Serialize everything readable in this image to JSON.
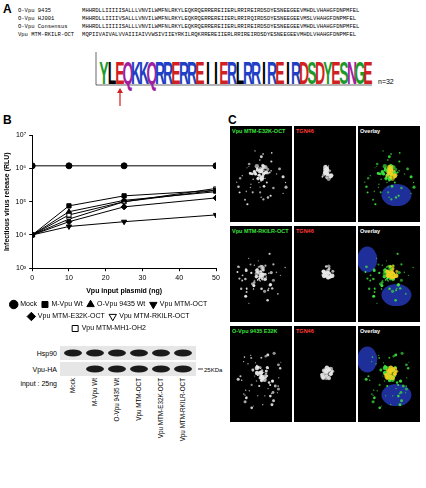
{
  "panel_A": {
    "letter": "A",
    "alignment": [
      {
        "name": "O-Vpu 9435",
        "sequence": "MHHRDLLIIIIISALLLVNVILWMFNLRKYLEQKRQERREREIIERLRRIREIRDSDYESNEEGEEVMHDLVHAHGFDNPMFEL"
      },
      {
        "name": "O-Vpu HJ001",
        "sequence": "MHHRDLLIIIIVSALLLVNVILWMFNLRKYLEQKRQERREREIIERLRRIRQIRDSDYESNEEGEEVMSLVHAHGFDNPMFEL"
      },
      {
        "name": "O-Vpu Consensus",
        "sequence": "MHHRDLLIIIIISALLLVNVILWMFNLRKYLEQKRQERREREIIERLRRIREIRDSDYESNEEGEEVMHDLVHAHGFDNPMFEL"
      },
      {
        "name": "Vpu MTM-RKILR-OCT",
        "sequence": "MQPIIVAIVALVVAIIIAIVVWSIVIIEYRKILRQKRREREIIERLRRIREIRDSDYESNEEGEEVMHDLVHAHGFDNPMFEL"
      }
    ],
    "logo": {
      "sequence": "YLEQKKQRRERREIIERLRRIREIRDSDYESNGE",
      "n_label": "n=32"
    }
  },
  "panel_B": {
    "letter": "B",
    "blot": {
      "rows": [
        {
          "label": "Hsp90",
          "bands": [
            true,
            true,
            true,
            true,
            true,
            true
          ]
        },
        {
          "label": "Vpu-HA",
          "bands": [
            false,
            true,
            true,
            true,
            true,
            true
          ]
        }
      ],
      "input_label": "input : 25ng",
      "marker_label": "25KDa",
      "lanes": [
        "Mock",
        "M-Vpu Wt",
        "O-Vpu 9435 Wt",
        "Vpu MTM-OCT",
        "Vpu MTM-E32K-OCT",
        "Vpu MTM-RKILR-OCT"
      ]
    }
  },
  "chart_data": {
    "type": "line",
    "x_label": "Vpu input plasmid (ng)",
    "y_label": "Infectious virus release (RLU)",
    "x": [
      0,
      10,
      25,
      50
    ],
    "xlim": [
      0,
      50
    ],
    "xticks": [
      0,
      10,
      20,
      30,
      40,
      50
    ],
    "log": "y",
    "ylim": [
      1000,
      10000000
    ],
    "yticks": [
      {
        "value": 1000,
        "label": "10³"
      },
      {
        "value": 10000,
        "label": "10⁴"
      },
      {
        "value": 100000,
        "label": "10⁵"
      },
      {
        "value": 1000000,
        "label": "10⁶"
      },
      {
        "value": 10000000,
        "label": "10⁷"
      }
    ],
    "grid": false,
    "legend": "bottom",
    "series": [
      {
        "name": "Mock",
        "color": "#000000",
        "marker": "circle",
        "values": [
          1200000,
          1200000,
          1200000,
          1200000
        ]
      },
      {
        "name": "M-Vpu Wt",
        "color": "#000000",
        "marker": "square",
        "values": [
          10000,
          75000,
          150000,
          220000
        ]
      },
      {
        "name": "O-Vpu 9435 Wt",
        "color": "#000000",
        "marker": "triangle",
        "values": [
          10000,
          50000,
          110000,
          200000
        ]
      },
      {
        "name": "Vpu MTM-OCT",
        "color": "#000000",
        "marker": "triangle-down",
        "values": [
          10000,
          18000,
          25000,
          40000
        ]
      },
      {
        "name": "Vpu MTM-E32K-OCT",
        "color": "#000000",
        "marker": "diamond",
        "values": [
          10000,
          25000,
          70000,
          130000
        ]
      },
      {
        "name": "Vpu MTM-RKILR-OCT",
        "color": "#000000",
        "marker": "triangle-down-open",
        "values": [
          10000,
          30000,
          100000,
          250000
        ]
      },
      {
        "name": "Vpu MTM-MH1-OH2",
        "color": "#000000",
        "marker": "square-open",
        "values": [
          10000,
          40000,
          100000,
          220000
        ]
      }
    ]
  },
  "panel_C": {
    "letter": "C",
    "rows": [
      {
        "label": "Vpu MTM-E32K-OCT"
      },
      {
        "label": "Vpu MTM-RKILR-OCT"
      },
      {
        "label": "O-Vpu 9435 E32K"
      }
    ],
    "channels": [
      "TGN46",
      "Overlay"
    ]
  }
}
